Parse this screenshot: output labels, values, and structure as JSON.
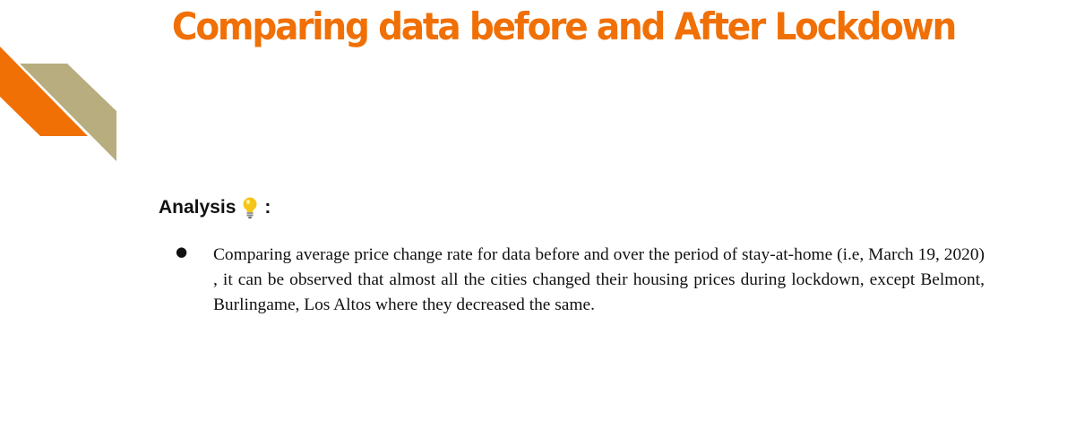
{
  "title": "Comparing data before and After Lockdown",
  "colors": {
    "title": "#f07006",
    "decor_orange": "#f07006",
    "decor_tan": "#b8ad7e"
  },
  "analysis": {
    "heading": "Analysis",
    "icon": "lightbulb-icon",
    "colon": ":"
  },
  "bullets": [
    {
      "marker": "●",
      "text": "Comparing average price change rate for data before and over the period of stay-at-home (i.e, March 19, 2020) , it can be observed that almost all the cities changed their housing prices during lockdown, except Belmont, Burlingame, Los Altos where they decreased the same."
    }
  ]
}
